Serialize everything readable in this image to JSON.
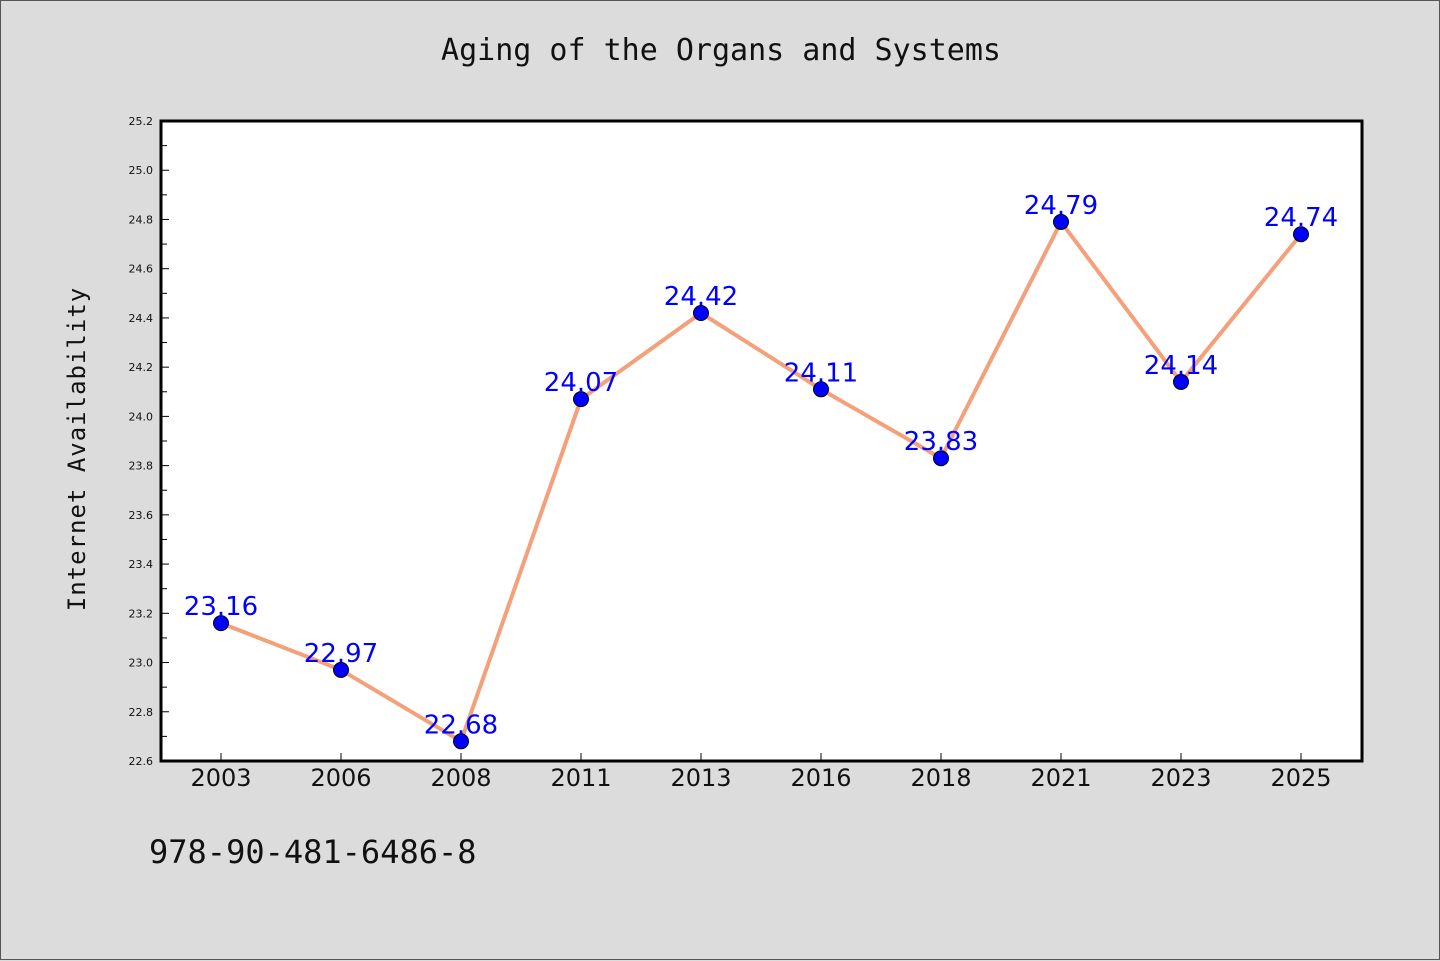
{
  "chart_data": {
    "type": "line",
    "title": "Aging of the Organs and Systems",
    "xlabel": "",
    "ylabel": "Internet Availability",
    "categories": [
      "2003",
      "2006",
      "2008",
      "2011",
      "2013",
      "2016",
      "2018",
      "2021",
      "2023",
      "2025"
    ],
    "series": [
      {
        "values": [
          23.16,
          22.97,
          22.68,
          24.07,
          24.42,
          24.11,
          23.83,
          24.79,
          24.14,
          24.74
        ],
        "line_color": "#f4a07a",
        "marker_color": "#0000ff"
      }
    ],
    "data_labels": [
      "23.16",
      "22.97",
      "22.68",
      "24.07",
      "24.42",
      "24.11",
      "23.83",
      "24.79",
      "24.14",
      "24.74"
    ],
    "ylim": [
      22.6,
      25.2
    ],
    "yticks": [
      "22.6",
      "22.8",
      "23.0",
      "23.2",
      "23.4",
      "23.6",
      "23.8",
      "24.0",
      "24.2",
      "24.4",
      "24.6",
      "24.8",
      "25.0",
      "25.2"
    ],
    "label_color": "#0000ff",
    "grid": false,
    "legend": "none"
  },
  "footer": {
    "isbn": "978-90-481-6486-8"
  }
}
